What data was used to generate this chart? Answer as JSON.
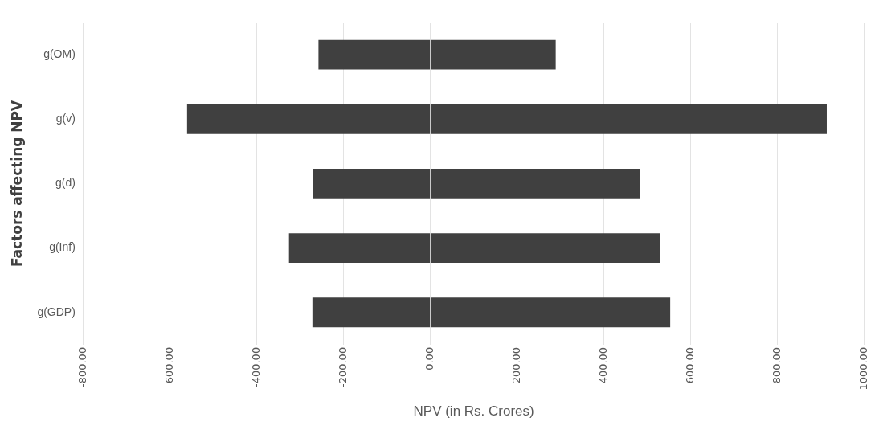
{
  "chart_data": {
    "type": "bar",
    "orientation": "horizontal",
    "stacked": true,
    "categories": [
      "g(OM)",
      "g(v)",
      "g(d)",
      "g(Inf)",
      "g(GDP)"
    ],
    "series": [
      {
        "color": "#404040",
        "values": [
          -258,
          -561,
          -270,
          -326,
          -272
        ]
      },
      {
        "color": "#404040",
        "values": [
          289,
          914,
          483,
          529,
          553
        ]
      }
    ],
    "xlim": [
      -800,
      1000
    ],
    "xticks": [
      {
        "value": -800,
        "label": "-800.00"
      },
      {
        "value": -600,
        "label": "-600.00"
      },
      {
        "value": -400,
        "label": "-400.00"
      },
      {
        "value": -200,
        "label": "-200.00"
      },
      {
        "value": 0,
        "label": "0.00"
      },
      {
        "value": 200,
        "label": "200.00"
      },
      {
        "value": 400,
        "label": "400.00"
      },
      {
        "value": 600,
        "label": "600.00"
      },
      {
        "value": 800,
        "label": "800.00"
      },
      {
        "value": 1000,
        "label": "1000.00"
      }
    ],
    "xlabel": "NPV (in Rs. Crores)",
    "ylabel": "Factors affecting NPV",
    "grid": "x",
    "legend": false
  }
}
